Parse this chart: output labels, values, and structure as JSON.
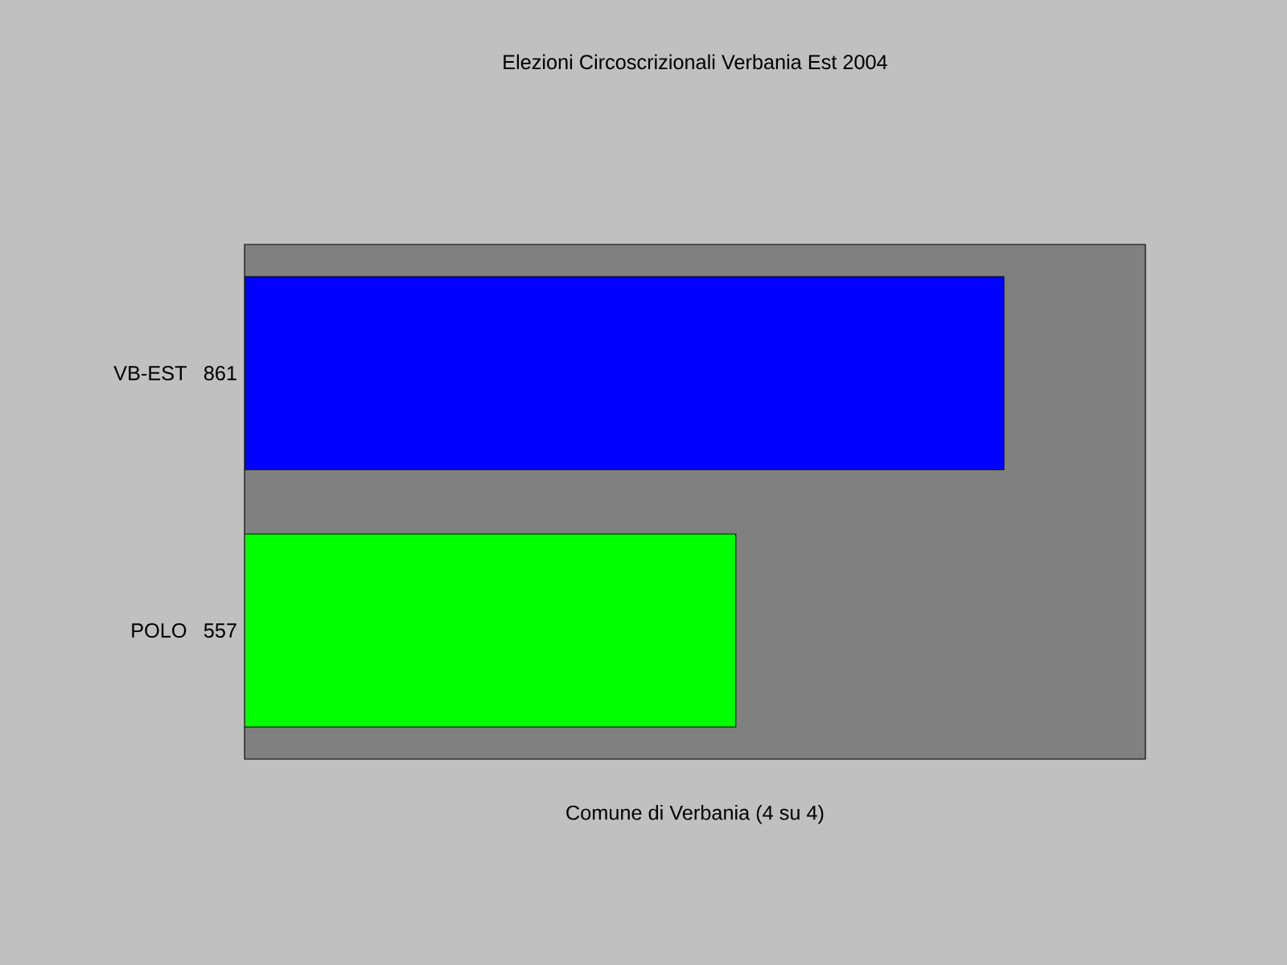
{
  "chart_data": {
    "type": "bar",
    "orientation": "horizontal",
    "title": "Elezioni Circoscrizionali Verbania Est 2004",
    "xlabel": "Comune di Verbania (4 su 4)",
    "categories": [
      "VB-EST",
      "POLO"
    ],
    "data_labels": true,
    "values": [
      861,
      557
    ],
    "colors": [
      "#0000ff",
      "#00ff00"
    ]
  }
}
